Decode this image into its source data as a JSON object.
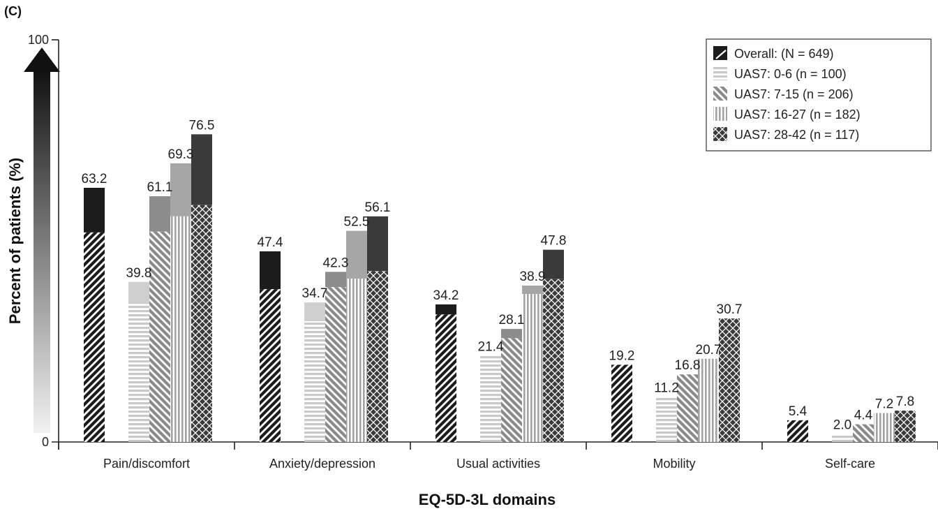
{
  "panel_label": "(C)",
  "colors": {
    "overall": "#1c1c1c",
    "uas7_0_6": "#cfcfcf",
    "uas7_7_15": "#8c8c8c",
    "uas7_16_27": "#a6a6a6",
    "uas7_28_42": "#3a3a3a",
    "arrow_top": "#111111",
    "arrow_bottom": "#f2f2f2"
  },
  "chart_data": {
    "type": "bar",
    "xlabel": "EQ-5D-3L domains",
    "ylabel": "Percent of patients (%)",
    "ylim": [
      0,
      100
    ],
    "yticks": [
      "0",
      "100"
    ],
    "categories": [
      "Pain/discomfort",
      "Anxiety/depression",
      "Usual activities",
      "Mobility",
      "Self-care"
    ],
    "legend_position": "top-right",
    "series": [
      {
        "name": "Overall: (N = 649)",
        "pattern": "diagonal",
        "values": [
          63.2,
          47.4,
          34.2,
          19.2,
          5.4
        ],
        "labels": [
          "63.2",
          "47.4",
          "34.2",
          "19.2",
          "5.4"
        ]
      },
      {
        "name": "UAS7: 0-6 (n = 100)",
        "pattern": "horizontal",
        "values": [
          39.8,
          34.7,
          21.4,
          11.2,
          2.0
        ],
        "labels": [
          "39.8",
          "34.7",
          "21.4",
          "11.2",
          "2.0"
        ]
      },
      {
        "name": "UAS7: 7-15 (n = 206)",
        "pattern": "backslash",
        "values": [
          61.1,
          42.3,
          28.1,
          16.8,
          4.4
        ],
        "labels": [
          "61.1",
          "42.3",
          "28.1",
          "16.8",
          "4.4"
        ]
      },
      {
        "name": "UAS7: 16-27 (n = 182)",
        "pattern": "vertical",
        "values": [
          69.3,
          52.5,
          38.9,
          20.7,
          7.2
        ],
        "labels": [
          "69.3",
          "52.5",
          "38.9",
          "20.7",
          "7.2"
        ]
      },
      {
        "name": "UAS7: 28-42 (n = 117)",
        "pattern": "crosshatch",
        "values": [
          76.5,
          56.1,
          47.8,
          30.7,
          7.8
        ],
        "labels": [
          "76.5",
          "56.1",
          "47.8",
          "30.7",
          "7.8"
        ]
      }
    ],
    "solid_caps": [
      [
        11.1,
        9.4,
        2.5,
        0,
        0
      ],
      [
        5.1,
        4.7,
        0,
        0,
        0
      ],
      [
        8.8,
        3.8,
        2.3,
        0,
        0
      ],
      [
        13.2,
        11.9,
        2.1,
        0,
        0
      ],
      [
        17.6,
        13.6,
        7.3,
        0,
        0
      ]
    ]
  }
}
